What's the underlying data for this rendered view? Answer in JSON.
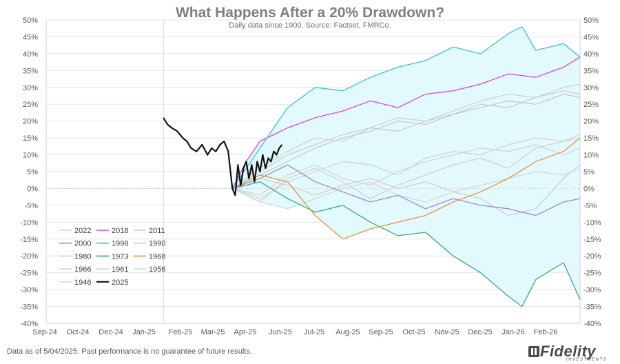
{
  "chart_data": {
    "type": "line",
    "title": "What Happens After a 20% Drawdown?",
    "subtitle": "Daily data since 1900.  Source: Factset, FMRCo.",
    "xlabel": "",
    "ylabel": "",
    "ylim": [
      -40,
      50
    ],
    "yticks": [
      "-40%",
      "-35%",
      "-30%",
      "-25%",
      "-20%",
      "-15%",
      "-10%",
      "-5%",
      "0%",
      "5%",
      "10%",
      "15%",
      "20%",
      "25%",
      "30%",
      "35%",
      "40%",
      "45%",
      "50%"
    ],
    "xticks": [
      "Sep-24",
      "Oct-24",
      "Dec-24",
      "Jan-25",
      "Feb-25",
      "Mar-25",
      "Apr-25",
      "Jun-25",
      "Jul-25",
      "Aug-25",
      "Sep-25",
      "Oct-25",
      "Nov-25",
      "Dec-25",
      "Jan-26",
      "Feb-26"
    ],
    "grid": true,
    "legend_position": "bottom-left",
    "shaded_band": "min-max range of historical paths",
    "series": [
      {
        "name": "2022",
        "color": "#d0d0d0",
        "x": [
          0,
          20,
          40,
          60,
          80,
          100,
          120,
          140,
          160,
          180,
          200,
          220,
          240,
          252
        ],
        "y": [
          0,
          -4,
          3,
          6,
          2,
          -3,
          1,
          4,
          7,
          9,
          6,
          12,
          14,
          15
        ]
      },
      {
        "name": "2018",
        "color": "#e040e0",
        "x": [
          0,
          10,
          20,
          40,
          60,
          80,
          100,
          120,
          140,
          160,
          180,
          200,
          220,
          240,
          252
        ],
        "y": [
          0,
          8,
          14,
          18,
          21,
          23,
          26,
          24,
          28,
          29,
          31,
          34,
          33,
          36,
          39
        ]
      },
      {
        "name": "2011",
        "color": "#cccccc",
        "x": [
          0,
          20,
          40,
          60,
          80,
          100,
          120,
          140,
          160,
          180,
          200,
          220,
          240,
          252
        ],
        "y": [
          0,
          5,
          10,
          13,
          16,
          18,
          17,
          20,
          22,
          25,
          24,
          27,
          29,
          28
        ]
      },
      {
        "name": "2000",
        "color": "#9a88d0",
        "x": [
          0,
          20,
          40,
          60,
          80,
          100,
          120,
          140,
          160,
          180,
          200,
          220,
          240,
          252
        ],
        "y": [
          0,
          3,
          7,
          2,
          -1,
          -4,
          -2,
          -6,
          -3,
          -5,
          -6,
          -8,
          -4,
          -3
        ]
      },
      {
        "name": "1998",
        "color": "#3cc0d8",
        "x": [
          0,
          10,
          20,
          40,
          60,
          80,
          100,
          120,
          140,
          160,
          180,
          200,
          210,
          220,
          240,
          252
        ],
        "y": [
          0,
          6,
          12,
          24,
          30,
          29,
          33,
          36,
          38,
          42,
          40,
          46,
          48,
          41,
          43,
          39
        ]
      },
      {
        "name": "1990",
        "color": "#c8c8c8",
        "x": [
          0,
          20,
          40,
          60,
          80,
          100,
          120,
          140,
          160,
          180,
          200,
          220,
          240,
          252
        ],
        "y": [
          0,
          4,
          8,
          12,
          15,
          17,
          20,
          19,
          22,
          24,
          26,
          25,
          28,
          27
        ]
      },
      {
        "name": "1980",
        "color": "#d0d0d0",
        "x": [
          0,
          20,
          40,
          60,
          80,
          100,
          120,
          140,
          160,
          180,
          200,
          220,
          240,
          252
        ],
        "y": [
          0,
          6,
          11,
          15,
          14,
          18,
          21,
          20,
          23,
          26,
          28,
          27,
          30,
          31
        ]
      },
      {
        "name": "1973",
        "color": "#3aa878",
        "x": [
          0,
          20,
          40,
          60,
          80,
          100,
          120,
          140,
          160,
          180,
          200,
          210,
          220,
          240,
          252
        ],
        "y": [
          0,
          2,
          -3,
          -7,
          -5,
          -10,
          -14,
          -13,
          -20,
          -25,
          -32,
          -35,
          -27,
          -22,
          -33
        ]
      },
      {
        "name": "1968",
        "color": "#e89040",
        "x": [
          0,
          20,
          40,
          60,
          80,
          100,
          120,
          140,
          160,
          180,
          200,
          220,
          240,
          252
        ],
        "y": [
          0,
          4,
          2,
          -8,
          -15,
          -12,
          -10,
          -8,
          -4,
          -1,
          3,
          8,
          11,
          15
        ]
      },
      {
        "name": "1966",
        "color": "#d2d2d2",
        "x": [
          0,
          20,
          40,
          60,
          80,
          100,
          120,
          140,
          160,
          180,
          200,
          220,
          240,
          252
        ],
        "y": [
          0,
          -3,
          2,
          5,
          8,
          7,
          4,
          9,
          11,
          10,
          13,
          15,
          14,
          16
        ]
      },
      {
        "name": "1961",
        "color": "#cfcfcf",
        "x": [
          0,
          20,
          40,
          60,
          80,
          100,
          120,
          140,
          160,
          180,
          200,
          220,
          240,
          252
        ],
        "y": [
          0,
          3,
          1,
          -2,
          1,
          3,
          0,
          2,
          -1,
          -3,
          -8,
          -6,
          3,
          7
        ]
      },
      {
        "name": "1956",
        "color": "#d4d4d4",
        "x": [
          0,
          20,
          40,
          60,
          80,
          100,
          120,
          140,
          160,
          180,
          200,
          220,
          240,
          252
        ],
        "y": [
          0,
          -2,
          4,
          7,
          3,
          1,
          5,
          8,
          10,
          12,
          11,
          13,
          10,
          12
        ]
      },
      {
        "name": "1946",
        "color": "#d6d6d6",
        "x": [
          0,
          20,
          40,
          60,
          80,
          100,
          120,
          140,
          160,
          180,
          200,
          220,
          240,
          252
        ],
        "y": [
          0,
          -4,
          -6,
          -3,
          0,
          2,
          -2,
          -4,
          -1,
          1,
          3,
          5,
          4,
          6
        ]
      },
      {
        "name": "2025",
        "color": "#111111",
        "x": [
          -50,
          -47,
          -44,
          -40,
          -36,
          -33,
          -30,
          -26,
          -22,
          -18,
          -15,
          -12,
          -9,
          -6,
          -3,
          0,
          2,
          4,
          6,
          8,
          10,
          12,
          14,
          16,
          18,
          20,
          22,
          24,
          26,
          28,
          30,
          32,
          34,
          36
        ],
        "y": [
          21,
          19,
          18,
          17,
          15,
          14,
          12,
          11,
          13,
          10,
          12,
          11,
          13,
          14,
          11,
          0,
          -2,
          7,
          1,
          6,
          8,
          3,
          7,
          2,
          8,
          5,
          10,
          6,
          9,
          8,
          11,
          10,
          12,
          13
        ]
      }
    ]
  },
  "footer": {
    "note": "Data as of 5/04/2025. Past performance is no guarantee of future results."
  },
  "logo": {
    "text": "Fidelity",
    "subtext": "INVESTMENTS"
  }
}
